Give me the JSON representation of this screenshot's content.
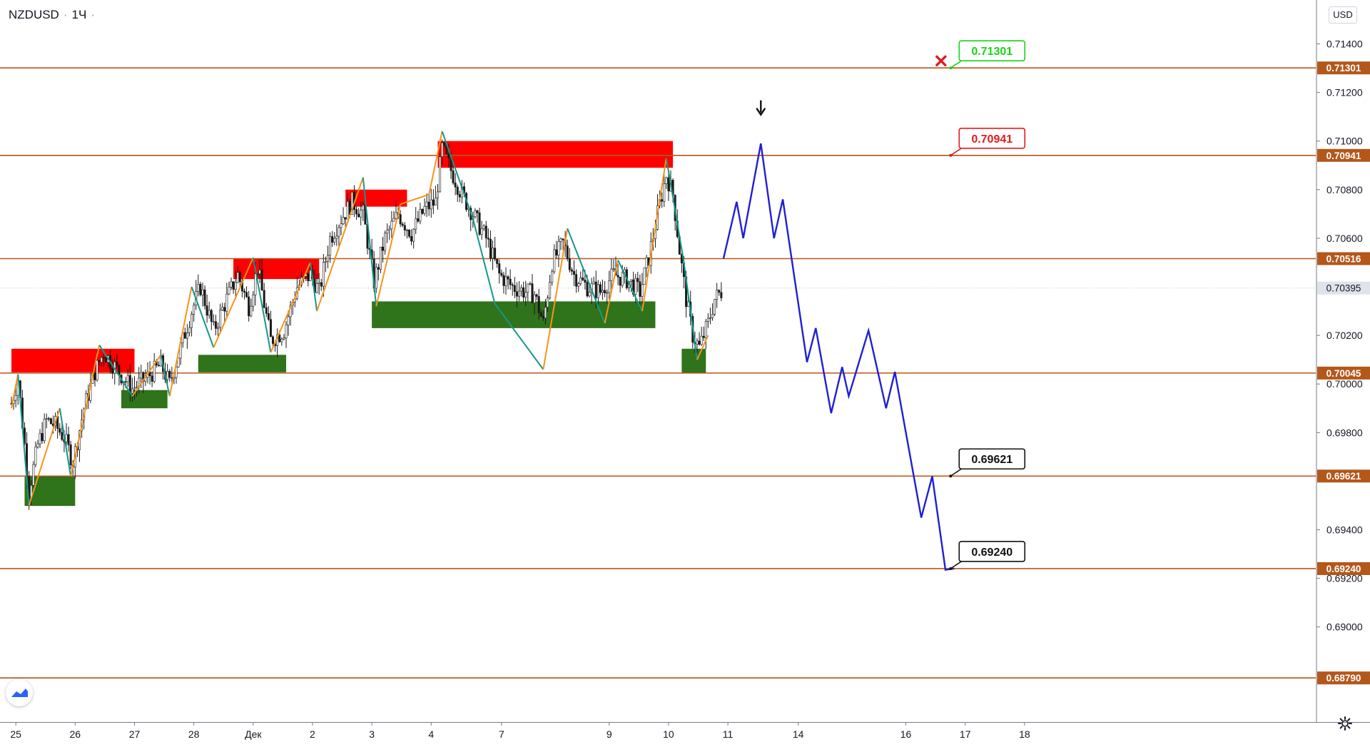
{
  "header": {
    "symbol": "NZDUSD",
    "interval": "1Ч",
    "currency": "USD"
  },
  "colors": {
    "level_line": "#b4571b",
    "level_label_bg": "#b4571b",
    "current_price_bg": "#e0e3eb",
    "supply_zone": "#ff0000",
    "demand_zone": "#2f731b",
    "zigzag_up": "#f7931a",
    "zigzag_down": "#17968a",
    "projection": "#1f1fd6",
    "candle": "#1a1a1a",
    "stop_mark": "#e31b1b",
    "callout_green": "#18d418",
    "callout_red": "#e31b1b",
    "callout_black": "#111111"
  },
  "icons": {
    "stop_marker": "close-x-icon",
    "entry_arrow": "arrow-down-icon",
    "logo": "tradingview-logo-icon",
    "settings": "gear-icon"
  },
  "chart_data": {
    "type": "candlestick",
    "symbol": "NZDUSD",
    "timeframe": "1Ч",
    "ylim": [
      0.6855,
      0.7155
    ],
    "y_ticks": [
      "0.71400",
      "0.71200",
      "0.71000",
      "0.70800",
      "0.70600",
      "0.70200",
      "0.70000",
      "0.69800",
      "0.69400",
      "0.69200",
      "0.69000"
    ],
    "x_ticks": [
      {
        "label": "25",
        "t": 2
      },
      {
        "label": "26",
        "t": 29
      },
      {
        "label": "27",
        "t": 56
      },
      {
        "label": "28",
        "t": 83
      },
      {
        "label": "Дек",
        "t": 110
      },
      {
        "label": "2",
        "t": 137
      },
      {
        "label": "3",
        "t": 164
      },
      {
        "label": "4",
        "t": 191
      },
      {
        "label": "7",
        "t": 223
      },
      {
        "label": "9",
        "t": 272
      },
      {
        "label": "10",
        "t": 299
      },
      {
        "label": "11",
        "t": 326
      },
      {
        "label": "14",
        "t": 358
      },
      {
        "label": "16",
        "t": 407
      },
      {
        "label": "17",
        "t": 434
      },
      {
        "label": "18",
        "t": 461
      }
    ],
    "levels": [
      {
        "price": "0.71301",
        "value": 0.71301,
        "label": "0.71301"
      },
      {
        "price": "0.70941",
        "value": 0.70941,
        "label": "0.70941"
      },
      {
        "price": "0.70516",
        "value": 0.70516,
        "label": "0.70516"
      },
      {
        "price": "0.70045",
        "value": 0.70045,
        "label": "0.70045"
      },
      {
        "price": "0.69621",
        "value": 0.69621,
        "label": "0.69621"
      },
      {
        "price": "0.69240",
        "value": 0.6924,
        "label": "0.69240"
      },
      {
        "price": "0.68790",
        "value": 0.6879,
        "label": "0.68790"
      }
    ],
    "current_price": {
      "value": 0.70395,
      "label": "0.70395"
    },
    "supply_zones": [
      {
        "t0": 0,
        "t1": 56,
        "top": 0.70145,
        "bottom": 0.70048
      },
      {
        "t0": 101,
        "t1": 140,
        "top": 0.70516,
        "bottom": 0.70432
      },
      {
        "t0": 152,
        "t1": 180,
        "top": 0.708,
        "bottom": 0.7073
      },
      {
        "t0": 194,
        "t1": 301,
        "top": 0.71,
        "bottom": 0.7089
      }
    ],
    "demand_zones": [
      {
        "t0": 6,
        "t1": 29,
        "top": 0.69621,
        "bottom": 0.69498
      },
      {
        "t0": 50,
        "t1": 71,
        "top": 0.69975,
        "bottom": 0.699
      },
      {
        "t0": 85,
        "t1": 125,
        "top": 0.7012,
        "bottom": 0.70048
      },
      {
        "t0": 164,
        "t1": 293,
        "top": 0.7034,
        "bottom": 0.7023
      },
      {
        "t0": 305,
        "t1": 316,
        "top": 0.70145,
        "bottom": 0.70045
      }
    ],
    "zigzag": [
      [
        0,
        0.699
      ],
      [
        3,
        0.7004
      ],
      [
        8,
        0.695
      ],
      [
        22,
        0.699
      ],
      [
        27,
        0.6962
      ],
      [
        40,
        0.7016
      ],
      [
        55,
        0.6995
      ],
      [
        68,
        0.7012
      ],
      [
        72,
        0.6995
      ],
      [
        82,
        0.704
      ],
      [
        92,
        0.7015
      ],
      [
        110,
        0.7052
      ],
      [
        118,
        0.7013
      ],
      [
        136,
        0.705
      ],
      [
        139,
        0.703
      ],
      [
        160,
        0.7085
      ],
      [
        166,
        0.7032
      ],
      [
        177,
        0.7074
      ],
      [
        190,
        0.7078
      ],
      [
        196,
        0.7104
      ],
      [
        210,
        0.7068
      ],
      [
        220,
        0.7033
      ],
      [
        242,
        0.7006
      ],
      [
        253,
        0.7064
      ],
      [
        270,
        0.7025
      ],
      [
        276,
        0.7051
      ],
      [
        287,
        0.703
      ],
      [
        298,
        0.7093
      ],
      [
        306,
        0.705
      ],
      [
        312,
        0.701
      ],
      [
        317,
        0.702
      ]
    ],
    "candles_profile": [
      [
        0,
        0.6992
      ],
      [
        3,
        0.7002
      ],
      [
        6,
        0.6975
      ],
      [
        8,
        0.6956
      ],
      [
        12,
        0.6975
      ],
      [
        16,
        0.6985
      ],
      [
        20,
        0.6983
      ],
      [
        24,
        0.6978
      ],
      [
        28,
        0.6968
      ],
      [
        33,
        0.699
      ],
      [
        38,
        0.7005
      ],
      [
        42,
        0.7013
      ],
      [
        48,
        0.7006
      ],
      [
        55,
        0.6998
      ],
      [
        62,
        0.7003
      ],
      [
        68,
        0.7008
      ],
      [
        72,
        0.7
      ],
      [
        77,
        0.7015
      ],
      [
        82,
        0.703
      ],
      [
        86,
        0.704
      ],
      [
        92,
        0.7022
      ],
      [
        98,
        0.7035
      ],
      [
        103,
        0.7045
      ],
      [
        108,
        0.7032
      ],
      [
        112,
        0.7048
      ],
      [
        118,
        0.7018
      ],
      [
        124,
        0.7022
      ],
      [
        130,
        0.704
      ],
      [
        136,
        0.7045
      ],
      [
        140,
        0.7038
      ],
      [
        145,
        0.706
      ],
      [
        150,
        0.7068
      ],
      [
        155,
        0.7075
      ],
      [
        160,
        0.707
      ],
      [
        165,
        0.7042
      ],
      [
        170,
        0.706
      ],
      [
        176,
        0.707
      ],
      [
        182,
        0.7062
      ],
      [
        188,
        0.7072
      ],
      [
        193,
        0.7075
      ],
      [
        196,
        0.7097
      ],
      [
        200,
        0.7088
      ],
      [
        205,
        0.7078
      ],
      [
        210,
        0.707
      ],
      [
        216,
        0.706
      ],
      [
        222,
        0.7045
      ],
      [
        228,
        0.704
      ],
      [
        234,
        0.7038
      ],
      [
        238,
        0.7037
      ],
      [
        242,
        0.7025
      ],
      [
        246,
        0.705
      ],
      [
        251,
        0.7058
      ],
      [
        256,
        0.7045
      ],
      [
        262,
        0.704
      ],
      [
        268,
        0.7038
      ],
      [
        274,
        0.7045
      ],
      [
        280,
        0.7043
      ],
      [
        286,
        0.7038
      ],
      [
        290,
        0.7052
      ],
      [
        294,
        0.707
      ],
      [
        298,
        0.7086
      ],
      [
        301,
        0.7078
      ],
      [
        304,
        0.7055
      ],
      [
        307,
        0.7035
      ],
      [
        310,
        0.702
      ],
      [
        313,
        0.7015
      ],
      [
        317,
        0.7025
      ],
      [
        320,
        0.7035
      ],
      [
        323,
        0.7038
      ]
    ],
    "projection": [
      [
        324,
        0.70516
      ],
      [
        330,
        0.7075
      ],
      [
        333,
        0.706
      ],
      [
        341,
        0.7099
      ],
      [
        347,
        0.706
      ],
      [
        351,
        0.7076
      ],
      [
        362,
        0.7009
      ],
      [
        366,
        0.7023
      ],
      [
        373,
        0.6988
      ],
      [
        378,
        0.7007
      ],
      [
        381,
        0.6995
      ],
      [
        390,
        0.7022
      ],
      [
        398,
        0.699
      ],
      [
        402,
        0.7005
      ],
      [
        414,
        0.6945
      ],
      [
        419,
        0.6962
      ],
      [
        425,
        0.69235
      ],
      [
        429,
        0.6924
      ]
    ],
    "callouts": [
      {
        "text": "0.71301",
        "anchor_t": 428,
        "value": 0.71301,
        "style": "green"
      },
      {
        "text": "0.70941",
        "anchor_t": 428,
        "value": 0.70941,
        "style": "red"
      },
      {
        "text": "0.69621",
        "anchor_t": 428,
        "value": 0.69621,
        "style": "black"
      },
      {
        "text": "0.69240",
        "anchor_t": 428,
        "value": 0.6924,
        "style": "black"
      }
    ],
    "stop_marker": {
      "t": 423,
      "value": 0.7133
    },
    "entry_arrow": {
      "t": 341,
      "value": 0.711
    }
  }
}
